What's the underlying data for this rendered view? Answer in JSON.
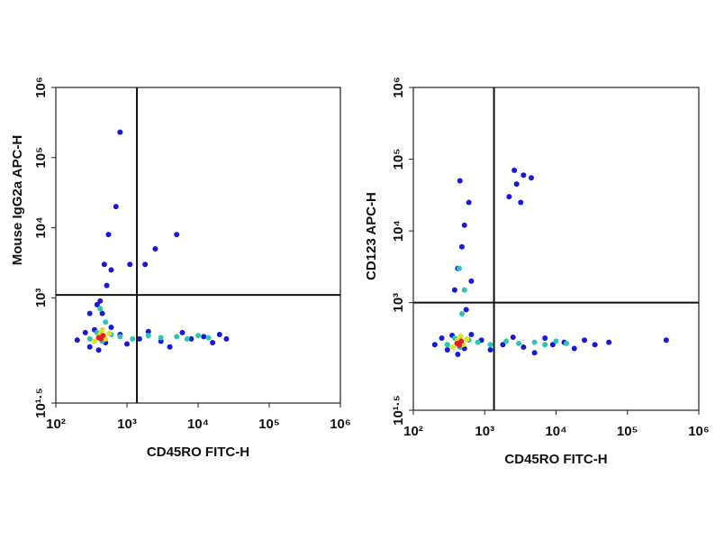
{
  "chart_data": [
    {
      "type": "scatter",
      "x_label": "CD45RO FITC-H",
      "y_label": "Mouse IgG2a APC-H",
      "xscale": "log",
      "yscale": "log",
      "xlim": [
        100,
        1000000
      ],
      "ylim": [
        31.6227766,
        1000000
      ],
      "xticks": [
        {
          "value": 100,
          "label": "10²"
        },
        {
          "value": 1000,
          "label": "10³"
        },
        {
          "value": 10000,
          "label": "10⁴"
        },
        {
          "value": 100000,
          "label": "10⁵"
        },
        {
          "value": 1000000,
          "label": "10⁶"
        }
      ],
      "yticks": [
        {
          "value": 31.6227766,
          "label": "10¹·⁵"
        },
        {
          "value": 1000,
          "label": "10³"
        },
        {
          "value": 10000,
          "label": "10⁴"
        },
        {
          "value": 100000,
          "label": "10⁵"
        },
        {
          "value": 1000000,
          "label": "10⁶"
        }
      ],
      "quadrant": [
        1380,
        1100
      ],
      "series": [
        {
          "color": "#1818d8",
          "x": [
            200,
            260,
            300,
            350,
            400,
            500,
            600,
            800,
            1000,
            1500,
            2000,
            3000,
            4000,
            6000,
            8000,
            12000,
            16000,
            20000,
            25000,
            300,
            420,
            520,
            600,
            480,
            550,
            700,
            1100,
            1800,
            5000,
            2500,
            450,
            380,
            800
          ],
          "y": [
            250,
            320,
            200,
            350,
            180,
            230,
            380,
            300,
            220,
            260,
            330,
            240,
            200,
            320,
            260,
            280,
            230,
            300,
            260,
            600,
            900,
            1500,
            2500,
            3000,
            8000,
            20000,
            3000,
            3000,
            8000,
            5000,
            600,
            800,
            230000
          ]
        },
        {
          "color": "#28c8b0",
          "x": [
            300,
            380,
            450,
            600,
            800,
            1200,
            2000,
            3000,
            5000,
            7000,
            10000,
            14000,
            500,
            420
          ],
          "y": [
            260,
            320,
            240,
            300,
            280,
            260,
            290,
            270,
            280,
            260,
            290,
            270,
            450,
            700
          ]
        },
        {
          "color": "#e0e020",
          "x": [
            350,
            420,
            500,
            560,
            450
          ],
          "y": [
            240,
            300,
            260,
            310,
            350
          ]
        },
        {
          "color": "#e02020",
          "x": [
            400,
            460,
            430
          ],
          "y": [
            270,
            290,
            260
          ]
        }
      ]
    },
    {
      "type": "scatter",
      "x_label": "CD45RO FITC-H",
      "y_label": "CD123 APC-H",
      "xscale": "log",
      "yscale": "log",
      "xlim": [
        100,
        1000000
      ],
      "ylim": [
        31.6227766,
        1000000
      ],
      "xticks": [
        {
          "value": 100,
          "label": "10²"
        },
        {
          "value": 1000,
          "label": "10³"
        },
        {
          "value": 10000,
          "label": "10⁴"
        },
        {
          "value": 100000,
          "label": "10⁵"
        },
        {
          "value": 1000000,
          "label": "10⁶"
        }
      ],
      "yticks": [
        {
          "value": 31.6227766,
          "label": "10¹·⁵"
        },
        {
          "value": 1000,
          "label": "10³"
        },
        {
          "value": 10000,
          "label": "10⁴"
        },
        {
          "value": 100000,
          "label": "10⁵"
        },
        {
          "value": 1000000,
          "label": "10⁶"
        }
      ],
      "quadrant": [
        1350,
        1000
      ],
      "series": [
        {
          "color": "#1818d8",
          "x": [
            200,
            250,
            300,
            350,
            420,
            520,
            650,
            900,
            1200,
            1800,
            2500,
            3500,
            5000,
            7000,
            9000,
            13000,
            18000,
            25000,
            35000,
            55000,
            350000,
            380,
            420,
            480,
            520,
            600,
            450,
            550,
            650,
            2200,
            2800,
            3500,
            4500,
            2600,
            3200
          ],
          "y": [
            260,
            320,
            220,
            350,
            190,
            230,
            360,
            300,
            220,
            260,
            330,
            240,
            200,
            320,
            260,
            280,
            230,
            300,
            260,
            280,
            300,
            1500,
            3000,
            6000,
            12000,
            25000,
            50000,
            800,
            2000,
            30000,
            45000,
            60000,
            55000,
            70000,
            25000
          ]
        },
        {
          "color": "#28c8b0",
          "x": [
            300,
            380,
            450,
            600,
            800,
            1200,
            2000,
            3000,
            5000,
            7000,
            10000,
            14000,
            480,
            520,
            440
          ],
          "y": [
            260,
            320,
            240,
            300,
            280,
            260,
            290,
            270,
            280,
            260,
            290,
            270,
            700,
            1500,
            3000
          ]
        },
        {
          "color": "#e0e020",
          "x": [
            360,
            420,
            500,
            560,
            460
          ],
          "y": [
            240,
            300,
            260,
            310,
            340
          ]
        },
        {
          "color": "#e02020",
          "x": [
            410,
            470,
            440
          ],
          "y": [
            270,
            290,
            255
          ]
        }
      ]
    }
  ]
}
